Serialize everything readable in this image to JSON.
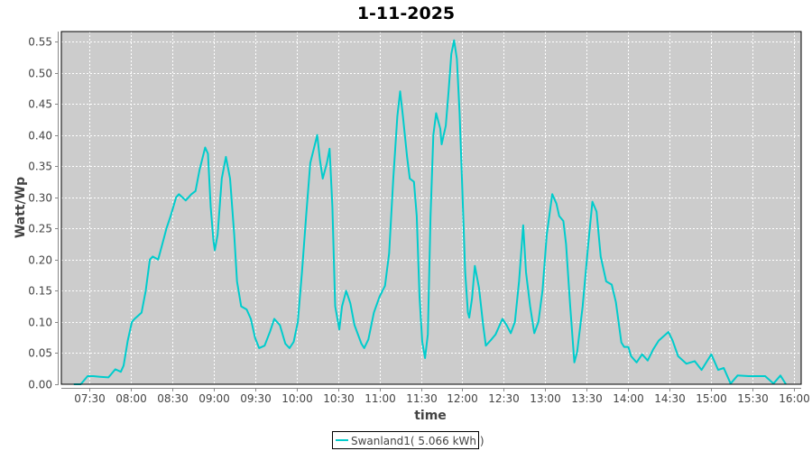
{
  "chart_data": {
    "type": "line",
    "title": "1-11-2025",
    "xlabel": "time",
    "ylabel": "Watt/Wp",
    "xlim": [
      "07:10",
      "16:05"
    ],
    "ylim": [
      0,
      0.566
    ],
    "grid": true,
    "legend_placement": "bottom",
    "x_ticks": [
      "07:30",
      "08:00",
      "08:30",
      "09:00",
      "09:30",
      "10:00",
      "10:30",
      "11:00",
      "11:30",
      "12:00",
      "12:30",
      "13:00",
      "13:30",
      "14:00",
      "14:30",
      "15:00",
      "15:30",
      "16:00"
    ],
    "y_ticks": [
      "0.00",
      "0.05",
      "0.10",
      "0.15",
      "0.20",
      "0.25",
      "0.30",
      "0.35",
      "0.40",
      "0.45",
      "0.50",
      "0.55"
    ],
    "colors": {
      "plot_background": "#cccccc",
      "series": "#00cccc",
      "grid": "#ffffff"
    },
    "series": [
      {
        "name": "Swanland1( 5.066 kWh )",
        "x": [
          "07:19",
          "07:24",
          "07:29",
          "07:33",
          "07:38",
          "07:44",
          "07:46",
          "07:49",
          "07:53",
          "07:55",
          "07:58",
          "08:01",
          "08:03",
          "08:08",
          "08:11",
          "08:14",
          "08:16",
          "08:20",
          "08:23",
          "08:26",
          "08:29",
          "08:33",
          "08:35",
          "08:40",
          "08:44",
          "08:47",
          "08:50",
          "08:54",
          "08:56",
          "08:58",
          "09:00",
          "09:01",
          "09:03",
          "09:06",
          "09:09",
          "09:12",
          "09:15",
          "09:17",
          "09:20",
          "09:24",
          "09:27",
          "09:30",
          "09:33",
          "09:37",
          "09:41",
          "09:44",
          "09:48",
          "09:52",
          "09:55",
          "09:58",
          "10:01",
          "10:04",
          "10:07",
          "10:10",
          "10:15",
          "10:17",
          "10:19",
          "10:22",
          "10:24",
          "10:26",
          "10:28",
          "10:31",
          "10:33",
          "10:36",
          "10:39",
          "10:42",
          "10:47",
          "10:49",
          "10:52",
          "10:56",
          "11:00",
          "11:04",
          "11:07",
          "11:10",
          "11:13",
          "11:15",
          "11:17",
          "11:20",
          "11:22",
          "11:25",
          "11:27",
          "11:29",
          "11:31",
          "11:33",
          "11:35",
          "11:37",
          "11:39",
          "11:41",
          "11:44",
          "11:45",
          "11:48",
          "11:50",
          "11:52",
          "11:54",
          "11:56",
          "11:58",
          "12:00",
          "12:02",
          "12:04",
          "12:05",
          "12:07",
          "12:09",
          "12:12",
          "12:15",
          "12:17",
          "12:21",
          "12:24",
          "12:29",
          "12:32",
          "12:35",
          "12:38",
          "12:41",
          "12:44",
          "12:46",
          "12:49",
          "12:52",
          "12:55",
          "12:58",
          "13:01",
          "13:05",
          "13:08",
          "13:10",
          "13:13",
          "13:15",
          "13:18",
          "13:21",
          "13:23",
          "13:27",
          "13:31",
          "13:34",
          "13:37",
          "13:40",
          "13:44",
          "13:48",
          "13:51",
          "13:55",
          "13:57",
          "14:00",
          "14:02",
          "14:06",
          "14:10",
          "14:14",
          "14:18",
          "14:22",
          "14:29",
          "14:32",
          "14:36",
          "14:42",
          "14:48",
          "14:53",
          "15:00",
          "15:05",
          "15:09",
          "15:14",
          "15:19",
          "15:27",
          "15:39",
          "15:45",
          "15:50",
          "15:54"
        ],
        "y": [
          0.0,
          0.0,
          0.013,
          0.013,
          0.012,
          0.011,
          0.016,
          0.024,
          0.02,
          0.03,
          0.07,
          0.1,
          0.105,
          0.115,
          0.15,
          0.2,
          0.205,
          0.2,
          0.225,
          0.25,
          0.27,
          0.3,
          0.305,
          0.295,
          0.305,
          0.31,
          0.345,
          0.38,
          0.37,
          0.285,
          0.23,
          0.215,
          0.24,
          0.33,
          0.365,
          0.33,
          0.24,
          0.165,
          0.125,
          0.12,
          0.105,
          0.075,
          0.058,
          0.062,
          0.085,
          0.105,
          0.095,
          0.065,
          0.058,
          0.068,
          0.1,
          0.18,
          0.27,
          0.355,
          0.4,
          0.36,
          0.33,
          0.355,
          0.378,
          0.285,
          0.125,
          0.088,
          0.125,
          0.15,
          0.13,
          0.095,
          0.065,
          0.058,
          0.072,
          0.115,
          0.14,
          0.158,
          0.21,
          0.33,
          0.43,
          0.47,
          0.43,
          0.365,
          0.33,
          0.325,
          0.27,
          0.14,
          0.068,
          0.042,
          0.08,
          0.27,
          0.4,
          0.435,
          0.41,
          0.385,
          0.415,
          0.47,
          0.53,
          0.552,
          0.522,
          0.435,
          0.31,
          0.18,
          0.115,
          0.107,
          0.138,
          0.19,
          0.155,
          0.095,
          0.062,
          0.072,
          0.08,
          0.105,
          0.095,
          0.082,
          0.1,
          0.165,
          0.255,
          0.18,
          0.125,
          0.082,
          0.1,
          0.152,
          0.24,
          0.305,
          0.29,
          0.27,
          0.262,
          0.225,
          0.125,
          0.035,
          0.052,
          0.125,
          0.225,
          0.293,
          0.277,
          0.205,
          0.165,
          0.16,
          0.132,
          0.067,
          0.06,
          0.06,
          0.045,
          0.035,
          0.048,
          0.038,
          0.056,
          0.07,
          0.084,
          0.07,
          0.045,
          0.033,
          0.037,
          0.023,
          0.048,
          0.023,
          0.026,
          0.001,
          0.014,
          0.013,
          0.013,
          0.001,
          0.014,
          0.0
        ]
      }
    ]
  }
}
